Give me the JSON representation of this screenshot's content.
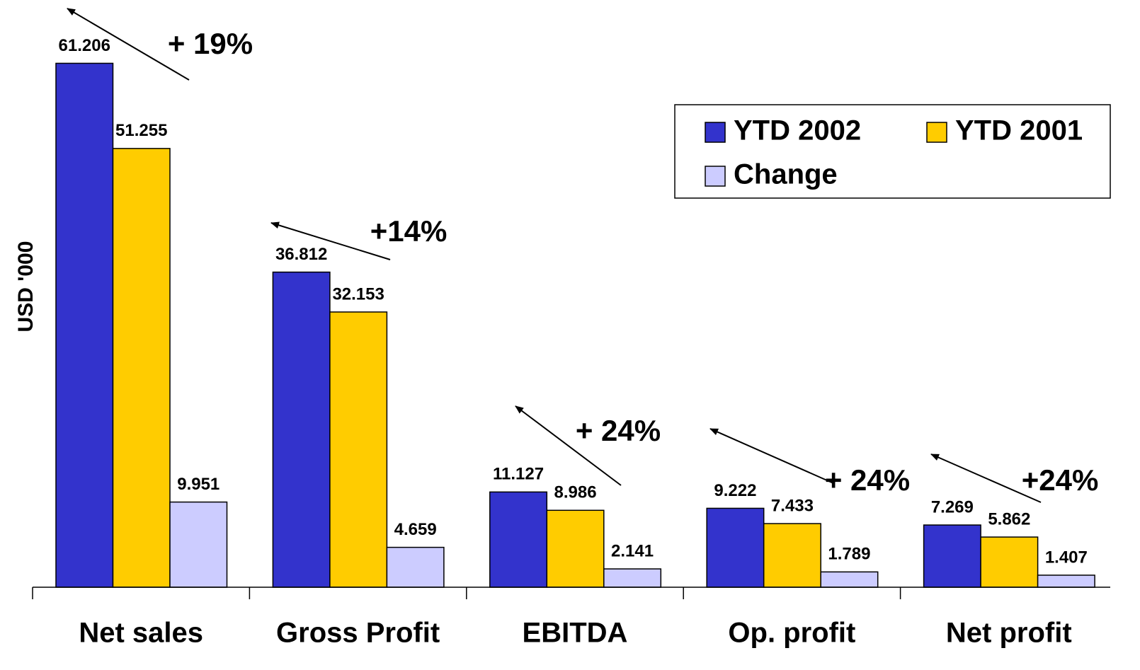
{
  "chart_data": {
    "type": "bar",
    "y_label": "USD '000",
    "categories": [
      "Net sales",
      "Gross Profit",
      "EBITDA",
      "Op. profit",
      "Net profit"
    ],
    "series": [
      {
        "name": "YTD 2002",
        "color": "#3333cc",
        "values": [
          61.206,
          36.812,
          11.127,
          9.222,
          7.269
        ]
      },
      {
        "name": "YTD 2001",
        "color": "#ffcc00",
        "values": [
          51.255,
          32.153,
          8.986,
          7.433,
          5.862
        ]
      },
      {
        "name": "Change",
        "color": "#ccccff",
        "values": [
          9.951,
          4.659,
          2.141,
          1.789,
          1.407
        ]
      }
    ],
    "annotations": [
      "+ 19%",
      "+14%",
      "+ 24%",
      "+ 24%",
      "+24%"
    ],
    "ylim": [
      0,
      68.6
    ],
    "legend": "upper right"
  }
}
